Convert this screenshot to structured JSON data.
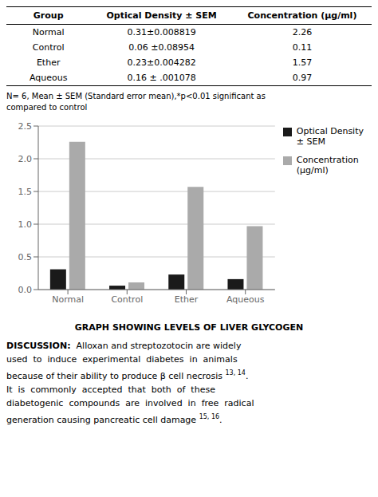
{
  "chart_data": {
    "type": "bar",
    "title": "GRAPH SHOWING LEVELS OF LIVER GLYCOGEN",
    "categories": [
      "Normal",
      "Control",
      "Ether",
      "Aqueous"
    ],
    "series": [
      {
        "name": "Optical Density\n± SEM",
        "color": "#1a1a1a",
        "values": [
          0.31,
          0.06,
          0.23,
          0.16
        ]
      },
      {
        "name": "Concentration\n(µg/ml)",
        "color": "#aaaaaa",
        "values": [
          2.26,
          0.11,
          1.57,
          0.97
        ]
      }
    ],
    "ylim": [
      0,
      2.5
    ],
    "yticks": [
      {
        "value": 0,
        "label": "0.0"
      },
      {
        "value": 0.5,
        "label": "0.5"
      },
      {
        "value": 1,
        "label": "1.0"
      },
      {
        "value": 1.5,
        "label": "1.5"
      },
      {
        "value": 2,
        "label": "2.0"
      },
      {
        "value": 2.5,
        "label": "2.5"
      }
    ],
    "grid": true,
    "legend": "upper right",
    "table": {
      "headers": [
        "Group",
        "Optical Density ± SEM",
        "Concentration (µg/ml)"
      ],
      "rows": [
        [
          "Normal",
          "0.31±0.008819",
          "2.26"
        ],
        [
          "Control",
          "0.06 ±0.08954",
          "0.11"
        ],
        [
          "Ether",
          "0.23±0.004282",
          "1.57"
        ],
        [
          "Aqueous",
          "0.16 ± .001078",
          "0.97"
        ]
      ]
    },
    "footnote": [
      "N= 6, Mean ± SEM (Standard error mean),*p<0.01 significant as",
      "compared to control"
    ],
    "discussion": [
      [
        {
          "text": "DISCUSSION:",
          "bold": true
        },
        {
          "text": "  Alloxan and streptozotocin are widely"
        }
      ],
      [
        {
          "text": "used  to  induce  experimental  diabetes  in  animals"
        }
      ],
      [
        {
          "text": "because of their ability to produce β cell necrosis "
        },
        {
          "text": "13, 14",
          "superscript": true
        },
        {
          "text": "."
        }
      ],
      [
        {
          "text": "It  is  commonly  accepted  that  both  of  these"
        }
      ],
      [
        {
          "text": "diabetogenic  compounds  are  involved  in  free  radical"
        }
      ],
      [
        {
          "text": "generation causing pancreatic cell damage "
        },
        {
          "text": "15, 16",
          "superscript": true
        },
        {
          "text": "."
        }
      ]
    ]
  }
}
